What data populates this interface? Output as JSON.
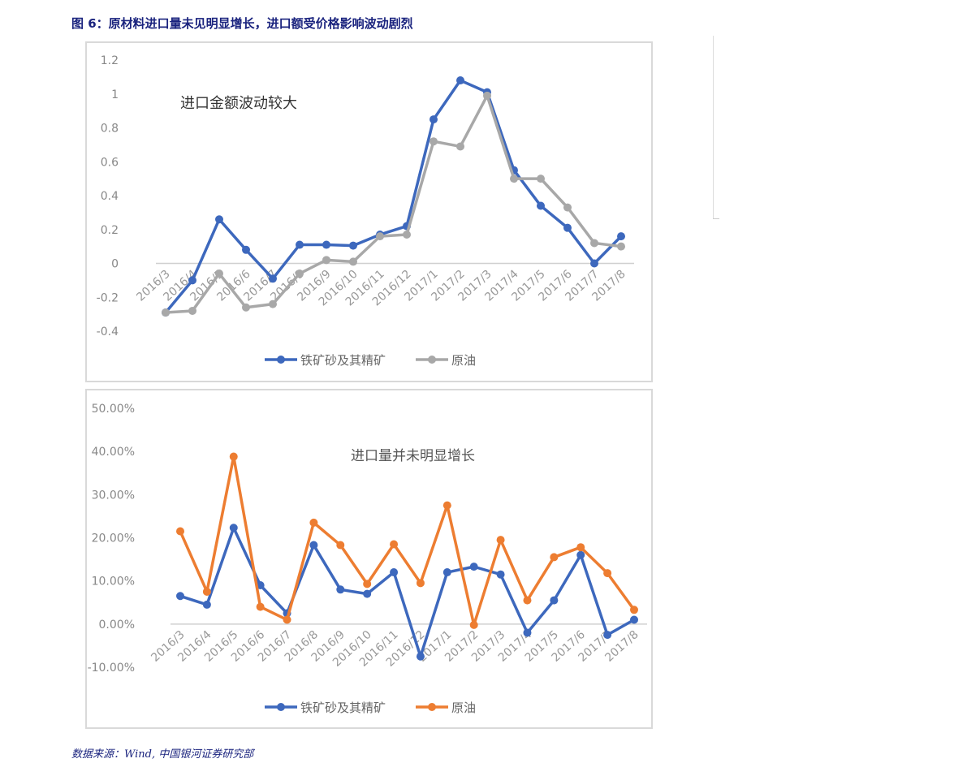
{
  "figure_title": "图 6：原材料进口量未见明显增长，进口额受价格影响波动剧烈",
  "source": "数据来源：Wind, 中国银河证券研究部",
  "chart_data": [
    {
      "type": "line",
      "title": "进口金额波动较大",
      "categories": [
        "2016/3",
        "2016/4",
        "2016/5",
        "2016/6",
        "2016/7",
        "2016/8",
        "2016/9",
        "2016/10",
        "2016/11",
        "2016/12",
        "2017/1",
        "2017/2",
        "2017/3",
        "2017/4",
        "2017/5",
        "2017/6",
        "2017/7",
        "2017/8"
      ],
      "ylim": [
        -0.4,
        1.2
      ],
      "yticks": [
        "1.2",
        "1",
        "0.8",
        "0.6",
        "0.4",
        "0.2",
        "0",
        "-0.2",
        "-0.4"
      ],
      "ytick_values": [
        1.2,
        1,
        0.8,
        0.6,
        0.4,
        0.2,
        0,
        -0.2,
        -0.4
      ],
      "legend": "bottom",
      "series": [
        {
          "name": "铁矿砂及其精矿",
          "color": "#3d68bd",
          "values": [
            -0.29,
            -0.1,
            0.26,
            0.08,
            -0.09,
            0.11,
            0.11,
            0.105,
            0.17,
            0.22,
            0.85,
            1.08,
            1.01,
            0.55,
            0.34,
            0.21,
            0.0,
            0.16
          ]
        },
        {
          "name": "原油",
          "color": "#a8a8a8",
          "values": [
            -0.29,
            -0.28,
            -0.06,
            -0.26,
            -0.24,
            -0.06,
            0.02,
            0.01,
            0.16,
            0.17,
            0.72,
            0.69,
            0.99,
            0.5,
            0.5,
            0.33,
            0.12,
            0.1
          ]
        }
      ]
    },
    {
      "type": "line",
      "title": "进口量并未明显增长",
      "categories": [
        "2016/3",
        "2016/4",
        "2016/5",
        "2016/6",
        "2016/7",
        "2016/8",
        "2016/9",
        "2016/10",
        "2016/11",
        "2016/12",
        "2017/1",
        "2017/2",
        "2017/3",
        "2017/4",
        "2017/5",
        "2017/6",
        "2017/7",
        "2017/8"
      ],
      "ylim": [
        -10,
        50
      ],
      "yticks": [
        "50.00%",
        "40.00%",
        "30.00%",
        "20.00%",
        "10.00%",
        "0.00%",
        "-10.00%"
      ],
      "ytick_values": [
        50,
        40,
        30,
        20,
        10,
        0,
        -10
      ],
      "unit": "%",
      "legend": "bottom",
      "series": [
        {
          "name": "铁矿砂及其精矿",
          "color": "#3d68bd",
          "values": [
            6.5,
            4.5,
            22.3,
            9.0,
            2.5,
            18.3,
            8.0,
            7.0,
            12.0,
            -7.5,
            12.0,
            13.3,
            11.5,
            -2.0,
            5.5,
            16.0,
            -2.5,
            1.0
          ]
        },
        {
          "name": "原油",
          "color": "#ed7d31",
          "values": [
            21.5,
            7.5,
            38.8,
            4.0,
            1.0,
            23.5,
            18.3,
            9.3,
            18.5,
            9.5,
            27.5,
            -0.2,
            19.5,
            5.5,
            15.5,
            17.8,
            11.8,
            3.3
          ]
        }
      ]
    }
  ]
}
